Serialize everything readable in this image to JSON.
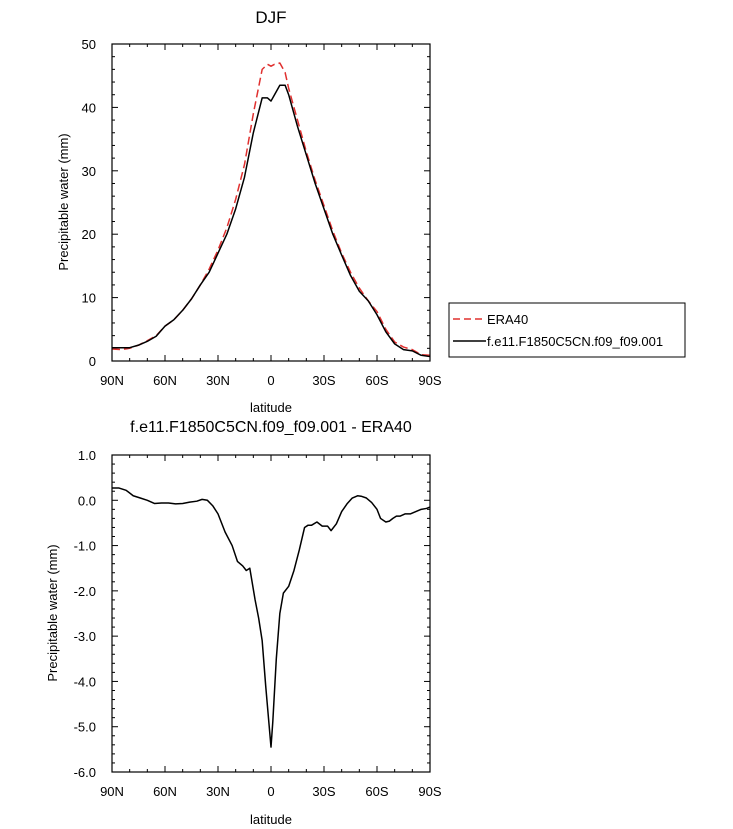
{
  "chart_data": [
    {
      "type": "line",
      "title": "DJF",
      "xlabel": "latitude",
      "ylabel": "Precipitable water (mm)",
      "xlim": [
        -90,
        90
      ],
      "ylim": [
        0,
        50
      ],
      "xticks": [
        {
          "value": -90,
          "label": "90N"
        },
        {
          "value": -60,
          "label": "60N"
        },
        {
          "value": -30,
          "label": "30N"
        },
        {
          "value": 0,
          "label": "0"
        },
        {
          "value": 30,
          "label": "30S"
        },
        {
          "value": 60,
          "label": "60S"
        },
        {
          "value": 90,
          "label": "90S"
        }
      ],
      "yticks": [
        {
          "value": 0,
          "label": "0"
        },
        {
          "value": 10,
          "label": "10"
        },
        {
          "value": 20,
          "label": "20"
        },
        {
          "value": 30,
          "label": "30"
        },
        {
          "value": 40,
          "label": "40"
        },
        {
          "value": 50,
          "label": "50"
        }
      ],
      "legend": {
        "placement": "right",
        "entries": [
          "ERA40",
          "f.e11.F1850C5CN.f09_f09.001"
        ]
      },
      "series": [
        {
          "name": "ERA40",
          "color": "#e0302f",
          "dash": true,
          "x": [
            -90,
            -85,
            -80,
            -75,
            -70,
            -65,
            -60,
            -55,
            -50,
            -45,
            -40,
            -35,
            -30,
            -25,
            -20,
            -15,
            -10,
            -5,
            -2,
            0,
            2,
            5,
            8,
            10,
            15,
            20,
            25,
            30,
            35,
            40,
            45,
            50,
            55,
            60,
            65,
            70,
            75,
            80,
            85,
            90
          ],
          "values": [
            1.9,
            1.8,
            2.0,
            2.5,
            3.2,
            4.0,
            5.5,
            6.5,
            8.0,
            9.8,
            12.0,
            14.5,
            17.5,
            21.0,
            25.5,
            31.0,
            39.0,
            46.0,
            46.8,
            46.5,
            46.8,
            47.0,
            45.5,
            43.0,
            38.0,
            33.0,
            28.5,
            24.5,
            20.5,
            17.0,
            14.0,
            11.5,
            9.5,
            7.8,
            5.0,
            3.0,
            2.2,
            1.8,
            1.0,
            0.9
          ]
        },
        {
          "name": "f.e11.F1850C5CN.f09_f09.001",
          "color": "#000000",
          "dash": false,
          "x": [
            -90,
            -85,
            -80,
            -75,
            -70,
            -65,
            -60,
            -55,
            -50,
            -45,
            -40,
            -35,
            -30,
            -25,
            -20,
            -15,
            -10,
            -5,
            -2,
            0,
            2,
            5,
            8,
            10,
            15,
            20,
            25,
            30,
            35,
            40,
            45,
            50,
            55,
            60,
            65,
            70,
            75,
            80,
            85,
            90
          ],
          "values": [
            2.1,
            2.1,
            2.1,
            2.5,
            3.1,
            3.9,
            5.5,
            6.5,
            8.0,
            9.8,
            12.0,
            14.0,
            17.0,
            20.0,
            24.0,
            29.0,
            36.0,
            41.5,
            41.5,
            41.0,
            42.0,
            43.5,
            43.5,
            42.0,
            37.0,
            32.5,
            28.0,
            24.0,
            20.0,
            16.7,
            13.5,
            11.0,
            9.5,
            7.3,
            4.6,
            2.7,
            1.8,
            1.6,
            0.9,
            0.7
          ]
        }
      ]
    },
    {
      "type": "line",
      "title": "f.e11.F1850C5CN.f09_f09.001 - ERA40",
      "xlabel": "latitude",
      "ylabel": "Precipitable water (mm)",
      "xlim": [
        -90,
        90
      ],
      "ylim": [
        -6,
        1
      ],
      "xticks": [
        {
          "value": -90,
          "label": "90N"
        },
        {
          "value": -60,
          "label": "60N"
        },
        {
          "value": -30,
          "label": "30N"
        },
        {
          "value": 0,
          "label": "0"
        },
        {
          "value": 30,
          "label": "30S"
        },
        {
          "value": 60,
          "label": "60S"
        },
        {
          "value": 90,
          "label": "90S"
        }
      ],
      "yticks": [
        {
          "value": 1,
          "label": "1.0"
        },
        {
          "value": 0,
          "label": "0.0"
        },
        {
          "value": -1,
          "label": "-1.0"
        },
        {
          "value": -2,
          "label": "-2.0"
        },
        {
          "value": -3,
          "label": "-3.0"
        },
        {
          "value": -4,
          "label": "-4.0"
        },
        {
          "value": -5,
          "label": "-5.0"
        },
        {
          "value": -6,
          "label": "-6.0"
        }
      ],
      "series": [
        {
          "name": "f.e11.F1850C5CN.f09_f09.001 - ERA40",
          "color": "#000000",
          "dash": false,
          "x": [
            -90,
            -86,
            -82,
            -78,
            -74,
            -70,
            -66,
            -62,
            -58,
            -54,
            -50,
            -46,
            -42,
            -39,
            -36,
            -33,
            -30,
            -26,
            -22,
            -19,
            -16,
            -14,
            -12,
            -9,
            -7,
            -5,
            -3,
            -1,
            0,
            1,
            3,
            5,
            7,
            10,
            13,
            16,
            19,
            21,
            23,
            26,
            29,
            32,
            34,
            37,
            40,
            43,
            46,
            49,
            51,
            54,
            57,
            60,
            62,
            65,
            67,
            69,
            71,
            73,
            76,
            79,
            82,
            85,
            88,
            90
          ],
          "values": [
            0.27,
            0.27,
            0.22,
            0.1,
            0.05,
            0.0,
            -0.07,
            -0.06,
            -0.06,
            -0.08,
            -0.07,
            -0.04,
            -0.02,
            0.02,
            0.0,
            -0.12,
            -0.3,
            -0.7,
            -1.0,
            -1.35,
            -1.45,
            -1.55,
            -1.5,
            -2.2,
            -2.6,
            -3.1,
            -4.1,
            -5.0,
            -5.45,
            -4.9,
            -3.5,
            -2.5,
            -2.05,
            -1.9,
            -1.55,
            -1.1,
            -0.6,
            -0.55,
            -0.55,
            -0.48,
            -0.57,
            -0.57,
            -0.67,
            -0.52,
            -0.25,
            -0.08,
            0.05,
            0.1,
            0.09,
            0.05,
            -0.05,
            -0.2,
            -0.4,
            -0.48,
            -0.46,
            -0.4,
            -0.35,
            -0.35,
            -0.3,
            -0.3,
            -0.25,
            -0.2,
            -0.18,
            -0.15
          ]
        }
      ]
    }
  ]
}
